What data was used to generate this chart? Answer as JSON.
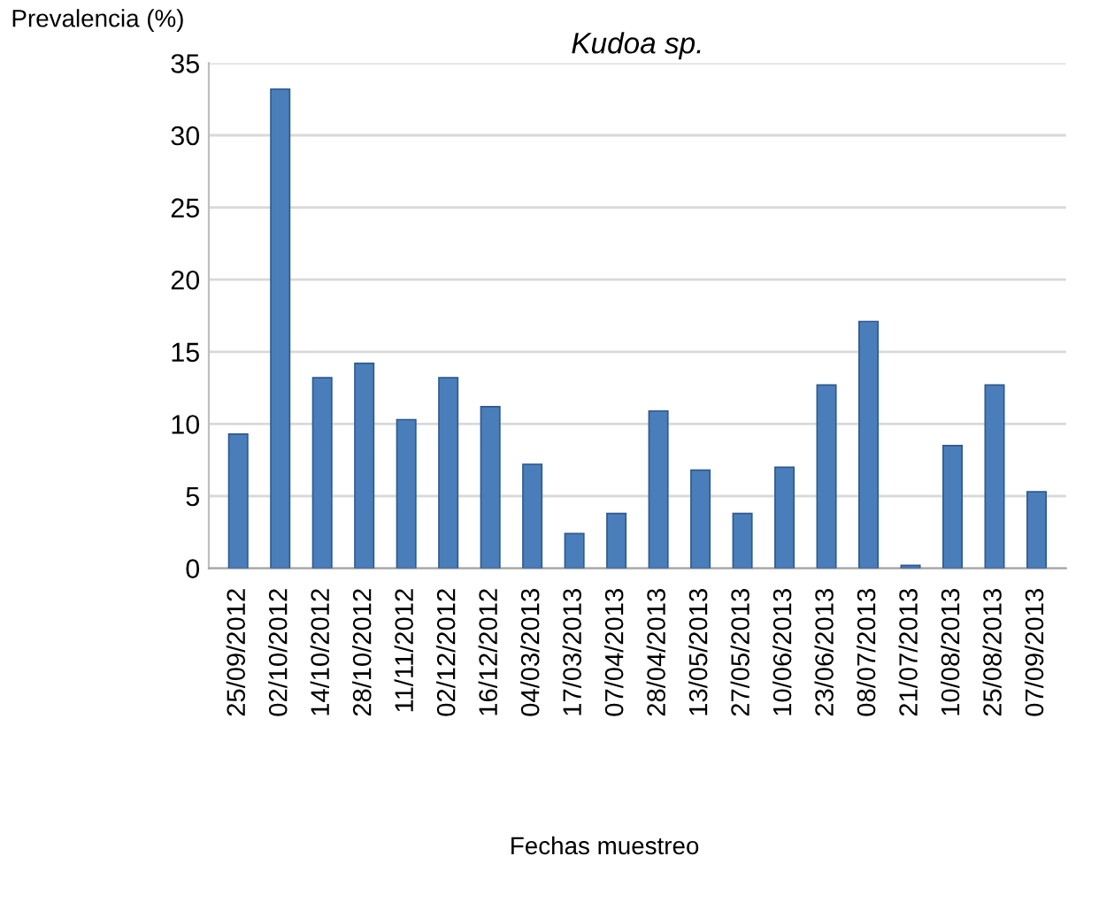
{
  "chart_data": {
    "type": "bar",
    "title": "Kudoa sp.",
    "ylabel": "Prevalencia (%)",
    "xlabel": "Fechas muestreo",
    "categories": [
      "25/09/2012",
      "02/10/2012",
      "14/10/2012",
      "28/10/2012",
      "11/11/2012",
      "02/12/2012",
      "16/12/2012",
      "04/03/2013",
      "17/03/2013",
      "07/04/2013",
      "28/04/2013",
      "13/05/2013",
      "27/05/2013",
      "10/06/2013",
      "23/06/2013",
      "08/07/2013",
      "21/07/2013",
      "10/08/2013",
      "25/08/2013",
      "07/09/2013"
    ],
    "values": [
      9.3,
      33.2,
      13.2,
      14.2,
      10.3,
      13.2,
      11.2,
      7.2,
      2.4,
      3.8,
      10.9,
      6.8,
      3.8,
      7.0,
      12.7,
      17.1,
      0.2,
      8.5,
      12.7,
      5.3
    ],
    "color": "#4a7ebb",
    "ylim": [
      0,
      35
    ],
    "yticks": [
      0,
      5,
      10,
      15,
      20,
      25,
      30,
      35
    ],
    "grid": "y"
  }
}
